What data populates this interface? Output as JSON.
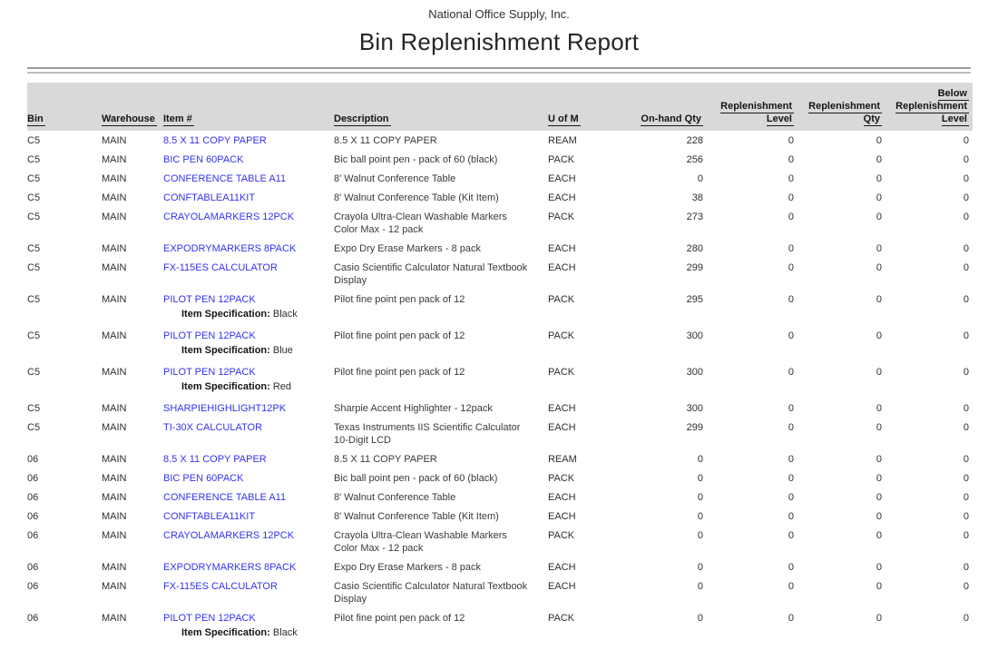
{
  "report": {
    "company": "National Office Supply, Inc.",
    "title": "Bin Replenishment Report"
  },
  "colors": {
    "link_blue": "#3333f0",
    "header_band": "#d9d9d9",
    "rule_dark": "#9c9c9c",
    "rule_light": "#bfbfbf"
  },
  "table": {
    "spec_label": "Item Specification:",
    "columns": [
      {
        "key": "bin",
        "align": "left",
        "lines": [
          "Bin"
        ]
      },
      {
        "key": "wh",
        "align": "left",
        "lines": [
          "Warehouse"
        ]
      },
      {
        "key": "item",
        "align": "left",
        "lines": [
          "Item #"
        ]
      },
      {
        "key": "desc",
        "align": "left",
        "lines": [
          "Description"
        ]
      },
      {
        "key": "uom",
        "align": "left",
        "lines": [
          "U of M"
        ]
      },
      {
        "key": "onhand",
        "align": "right",
        "lines": [
          "On-hand Qty"
        ]
      },
      {
        "key": "level",
        "align": "right",
        "lines": [
          "Replenishment",
          "Level"
        ]
      },
      {
        "key": "qty",
        "align": "right",
        "lines": [
          "Replenishment",
          "Qty"
        ]
      },
      {
        "key": "below",
        "align": "right",
        "lines": [
          "Below",
          "Replenishment",
          "Level"
        ]
      }
    ],
    "rows": [
      {
        "bin": "C5",
        "wh": "MAIN",
        "item": "8.5 X 11 COPY PAPER",
        "desc": "8.5 X 11 COPY PAPER",
        "uom": "REAM",
        "onhand": "228",
        "level": "0",
        "qty": "0",
        "below": "0"
      },
      {
        "bin": "C5",
        "wh": "MAIN",
        "item": "BIC PEN 60PACK",
        "desc": "Bic ball point pen - pack of 60 (black)",
        "uom": "PACK",
        "onhand": "256",
        "level": "0",
        "qty": "0",
        "below": "0"
      },
      {
        "bin": "C5",
        "wh": "MAIN",
        "item": "CONFERENCE TABLE A11",
        "desc": "8' Walnut Conference Table",
        "uom": "EACH",
        "onhand": "0",
        "level": "0",
        "qty": "0",
        "below": "0"
      },
      {
        "bin": "C5",
        "wh": "MAIN",
        "item": "CONFTABLEA11KIT",
        "desc": "8' Walnut Conference Table (Kit Item)",
        "uom": "EACH",
        "onhand": "38",
        "level": "0",
        "qty": "0",
        "below": "0"
      },
      {
        "bin": "C5",
        "wh": "MAIN",
        "item": "CRAYOLAMARKERS 12PCK",
        "desc": "Crayola Ultra-Clean Washable Markers Color Max - 12 pack",
        "uom": "PACK",
        "onhand": "273",
        "level": "0",
        "qty": "0",
        "below": "0"
      },
      {
        "bin": "C5",
        "wh": "MAIN",
        "item": "EXPODRYMARKERS 8PACK",
        "desc": "Expo Dry Erase Markers - 8 pack",
        "uom": "EACH",
        "onhand": "280",
        "level": "0",
        "qty": "0",
        "below": "0"
      },
      {
        "bin": "C5",
        "wh": "MAIN",
        "item": "FX-115ES CALCULATOR",
        "desc": "Casio Scientific Calculator Natural Textbook Display",
        "uom": "EACH",
        "onhand": "299",
        "level": "0",
        "qty": "0",
        "below": "0"
      },
      {
        "bin": "C5",
        "wh": "MAIN",
        "item": "PILOT PEN 12PACK",
        "desc": "Pilot fine point pen pack of 12",
        "uom": "PACK",
        "onhand": "295",
        "level": "0",
        "qty": "0",
        "below": "0",
        "spec": "Black"
      },
      {
        "bin": "C5",
        "wh": "MAIN",
        "item": "PILOT PEN 12PACK",
        "desc": "Pilot fine point pen pack of 12",
        "uom": "PACK",
        "onhand": "300",
        "level": "0",
        "qty": "0",
        "below": "0",
        "spec": "Blue"
      },
      {
        "bin": "C5",
        "wh": "MAIN",
        "item": "PILOT PEN 12PACK",
        "desc": "Pilot fine point pen pack of 12",
        "uom": "PACK",
        "onhand": "300",
        "level": "0",
        "qty": "0",
        "below": "0",
        "spec": "Red"
      },
      {
        "bin": "C5",
        "wh": "MAIN",
        "item": "SHARPIEHIGHLIGHT12PK",
        "desc": "Sharpie Accent Highlighter - 12pack",
        "uom": "EACH",
        "onhand": "300",
        "level": "0",
        "qty": "0",
        "below": "0"
      },
      {
        "bin": "C5",
        "wh": "MAIN",
        "item": "TI-30X CALCULATOR",
        "desc": "Texas Instruments IIS Scientific Calculator 10-Digit LCD",
        "uom": "EACH",
        "onhand": "299",
        "level": "0",
        "qty": "0",
        "below": "0"
      },
      {
        "bin": "06",
        "wh": "MAIN",
        "item": "8.5 X 11 COPY PAPER",
        "desc": "8.5 X 11 COPY PAPER",
        "uom": "REAM",
        "onhand": "0",
        "level": "0",
        "qty": "0",
        "below": "0"
      },
      {
        "bin": "06",
        "wh": "MAIN",
        "item": "BIC PEN 60PACK",
        "desc": "Bic ball point pen - pack of 60 (black)",
        "uom": "PACK",
        "onhand": "0",
        "level": "0",
        "qty": "0",
        "below": "0"
      },
      {
        "bin": "06",
        "wh": "MAIN",
        "item": "CONFERENCE TABLE A11",
        "desc": "8' Walnut Conference Table",
        "uom": "EACH",
        "onhand": "0",
        "level": "0",
        "qty": "0",
        "below": "0"
      },
      {
        "bin": "06",
        "wh": "MAIN",
        "item": "CONFTABLEA11KIT",
        "desc": "8' Walnut Conference Table (Kit Item)",
        "uom": "EACH",
        "onhand": "0",
        "level": "0",
        "qty": "0",
        "below": "0"
      },
      {
        "bin": "06",
        "wh": "MAIN",
        "item": "CRAYOLAMARKERS 12PCK",
        "desc": "Crayola Ultra-Clean Washable Markers Color Max - 12 pack",
        "uom": "PACK",
        "onhand": "0",
        "level": "0",
        "qty": "0",
        "below": "0"
      },
      {
        "bin": "06",
        "wh": "MAIN",
        "item": "EXPODRYMARKERS 8PACK",
        "desc": "Expo Dry Erase Markers - 8 pack",
        "uom": "EACH",
        "onhand": "0",
        "level": "0",
        "qty": "0",
        "below": "0"
      },
      {
        "bin": "06",
        "wh": "MAIN",
        "item": "FX-115ES CALCULATOR",
        "desc": "Casio Scientific Calculator Natural Textbook Display",
        "uom": "EACH",
        "onhand": "0",
        "level": "0",
        "qty": "0",
        "below": "0"
      },
      {
        "bin": "06",
        "wh": "MAIN",
        "item": "PILOT PEN 12PACK",
        "desc": "Pilot fine point pen pack of 12",
        "uom": "PACK",
        "onhand": "0",
        "level": "0",
        "qty": "0",
        "below": "0",
        "spec": "Black"
      }
    ]
  }
}
